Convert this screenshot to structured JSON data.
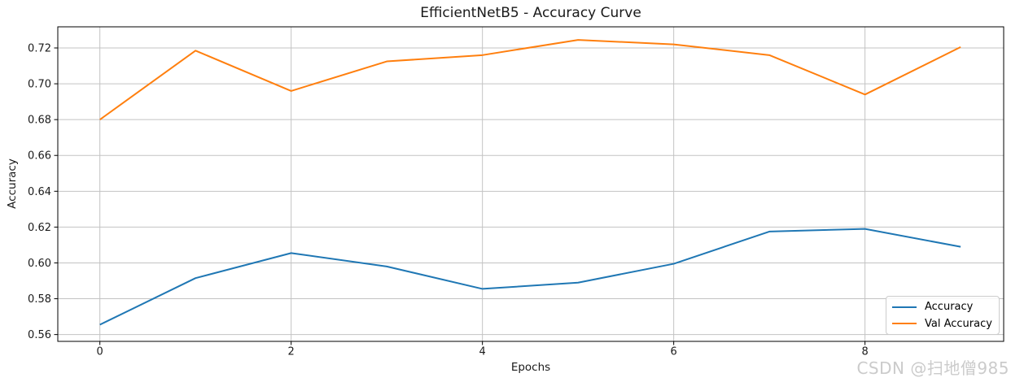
{
  "watermark": {
    "text": "CSDN @扫地僧985"
  },
  "chart_data": {
    "type": "line",
    "title": "EfficientNetB5 - Accuracy Curve",
    "xlabel": "Epochs",
    "ylabel": "Accuracy",
    "x": [
      0,
      1,
      2,
      3,
      4,
      5,
      6,
      7,
      8,
      9
    ],
    "series": [
      {
        "name": "Accuracy",
        "color": "#1f77b4",
        "values": [
          0.5655,
          0.5915,
          0.6055,
          0.598,
          0.5855,
          0.589,
          0.5995,
          0.6175,
          0.619,
          0.609
        ]
      },
      {
        "name": "Val Accuracy",
        "color": "#ff7f0e",
        "values": [
          0.68,
          0.7185,
          0.696,
          0.7125,
          0.716,
          0.7245,
          0.722,
          0.716,
          0.694,
          0.7205
        ]
      }
    ],
    "xlim": [
      -0.44,
      9.45
    ],
    "ylim": [
      0.5562,
      0.7318
    ],
    "xticks": [
      "0",
      "2",
      "4",
      "6",
      "8"
    ],
    "yticks": [
      "0.56",
      "0.58",
      "0.60",
      "0.62",
      "0.64",
      "0.66",
      "0.68",
      "0.70",
      "0.72"
    ],
    "grid": true,
    "grid_color": "#c3c3c3",
    "spine_color": "#000000",
    "tick_label_color": "#1a1a1a",
    "line_width": 2,
    "legend_position": "lower right"
  }
}
